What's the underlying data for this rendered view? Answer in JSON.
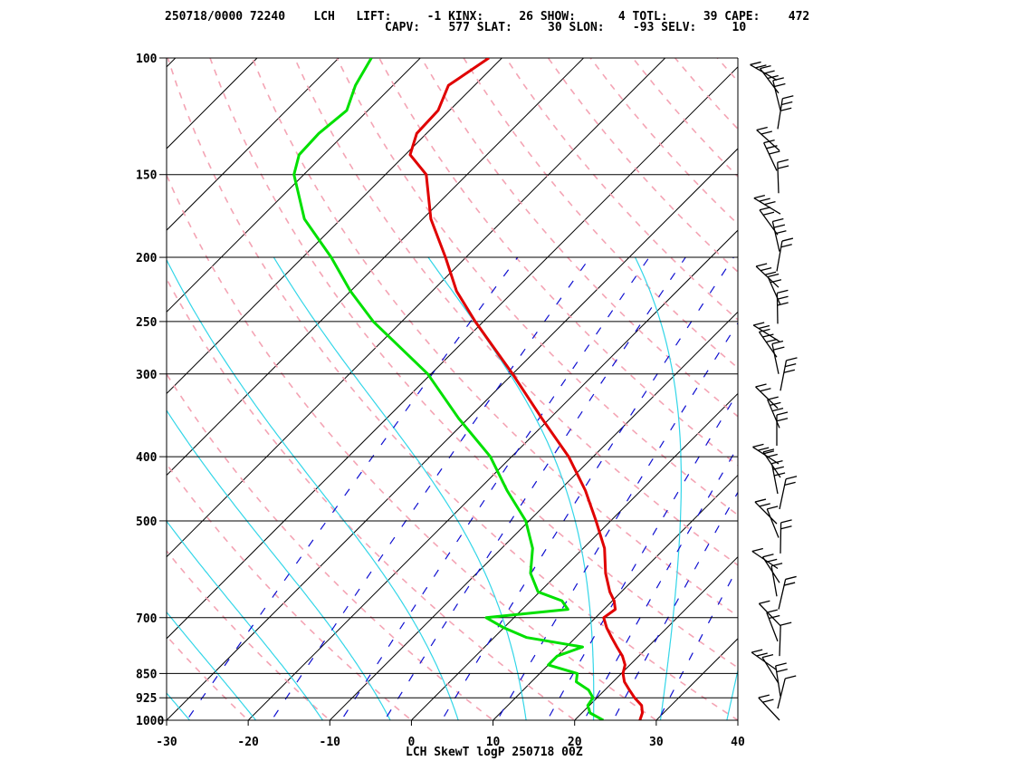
{
  "header": {
    "line1": "250718/0000 72240    LCH   LIFT:     -1 KINX:     26 SHOW:      4 TOTL:     39 CAPE:    472",
    "line2": "CAPV:    577 SLAT:     30 SLON:    -93 SELV:     10"
  },
  "chart_data": {
    "type": "line",
    "title": "LCH SkewT logP 250718 00Z",
    "xlabel": "",
    "ylabel": "",
    "xlim": [
      -30,
      40
    ],
    "ylim_pressure": [
      1000,
      100
    ],
    "log_pressure": true,
    "skewed_temperature": true,
    "x_ticks": [
      "-30",
      "-20",
      "-10",
      "0",
      "10",
      "20",
      "30",
      "40"
    ],
    "pressure_ticks": [
      "100",
      "150",
      "200",
      "250",
      "300",
      "400",
      "500",
      "700",
      "850",
      "925",
      "1000"
    ],
    "series": [
      {
        "color": "#e00000",
        "p": [
          1000,
          975,
          950,
          925,
          900,
          875,
          850,
          825,
          800,
          775,
          750,
          725,
          700,
          680,
          660,
          640,
          600,
          550,
          500,
          450,
          400,
          350,
          300,
          250,
          225,
          200,
          175,
          150,
          140,
          130,
          120,
          110,
          100
        ],
        "t": [
          28.0,
          27.4,
          26.4,
          24.6,
          23.0,
          21.4,
          20.2,
          19.4,
          18.0,
          16.2,
          14.4,
          12.6,
          11.0,
          11.4,
          10.2,
          8.6,
          5.8,
          2.6,
          -1.8,
          -6.8,
          -13.0,
          -21.0,
          -30.0,
          -41.0,
          -47.0,
          -52.5,
          -59.0,
          -65.0,
          -69.4,
          -71.2,
          -71.4,
          -73.2,
          -71.6
        ]
      },
      {
        "color": "#00e000",
        "p": [
          1000,
          975,
          950,
          925,
          900,
          875,
          850,
          825,
          800,
          775,
          750,
          725,
          700,
          680,
          660,
          640,
          600,
          550,
          500,
          450,
          400,
          350,
          300,
          250,
          225,
          200,
          175,
          150,
          140,
          130,
          120,
          110,
          100
        ],
        "t": [
          23.5,
          21.0,
          19.8,
          19.5,
          18.0,
          15.5,
          14.6,
          10.0,
          10.0,
          12.0,
          4.0,
          0.0,
          -3.4,
          5.6,
          3.8,
          -0.2,
          -3.4,
          -6.2,
          -10.4,
          -16.4,
          -22.6,
          -31.2,
          -40.4,
          -53.5,
          -60.0,
          -66.5,
          -74.5,
          -81.2,
          -83.0,
          -83.2,
          -82.6,
          -84.6,
          -86.0
        ]
      }
    ]
  }
}
